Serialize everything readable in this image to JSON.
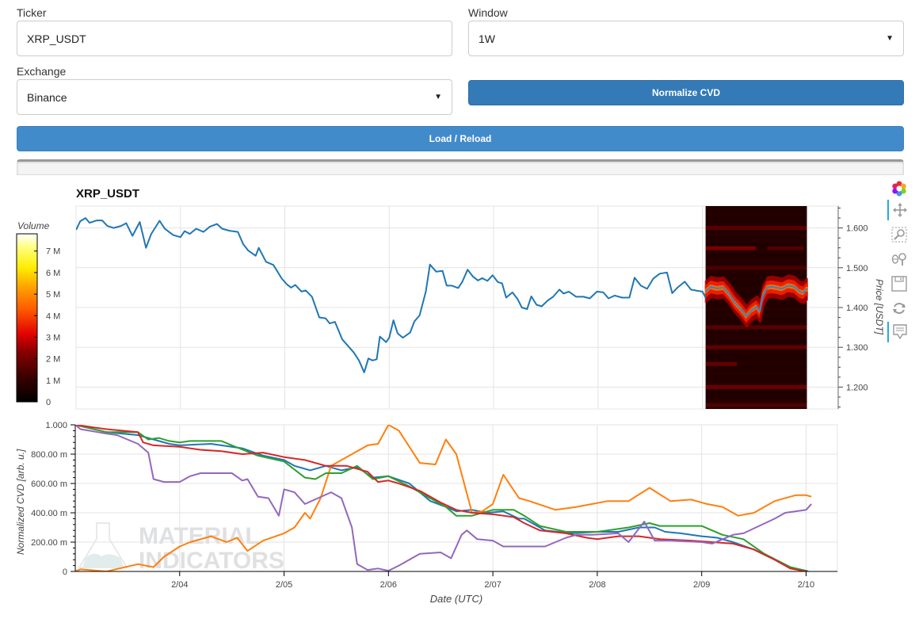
{
  "form": {
    "ticker_label": "Ticker",
    "ticker_value": "XRP_USDT",
    "window_label": "Window",
    "window_value": "1W",
    "exchange_label": "Exchange",
    "exchange_value": "Binance",
    "normalize_label": "Normalize CVD",
    "load_label": "Load / Reload"
  },
  "toolbar": {
    "tools": [
      {
        "name": "bokeh-logo-icon",
        "active": false
      },
      {
        "name": "pan-icon",
        "active": true
      },
      {
        "name": "box-zoom-icon",
        "active": false
      },
      {
        "name": "wheel-zoom-icon",
        "active": false
      },
      {
        "name": "save-icon",
        "active": false
      },
      {
        "name": "reset-icon",
        "active": false
      },
      {
        "name": "hover-icon",
        "active": true
      }
    ]
  },
  "watermark": {
    "line1": "MATERIAL",
    "line2": "INDICATORS"
  },
  "colors": {
    "price_line": "#1f77b4",
    "cvd_series": [
      "#1f77b4",
      "#ff7f0e",
      "#2ca02c",
      "#d62728",
      "#9467bd"
    ],
    "grid": "#e0e0e0"
  },
  "chart_data": [
    {
      "type": "line",
      "title": "XRP_USDT",
      "ylabel": "Price [USDT]",
      "ylim": [
        1.145,
        1.655
      ],
      "yticks": [
        1.2,
        1.3,
        1.4,
        1.5,
        1.6
      ],
      "ytick_labels": [
        "1.200",
        "1.300",
        "1.400",
        "1.500",
        "1.600"
      ],
      "xlim": [
        0,
        7.3
      ],
      "x_grid": [
        1,
        2,
        3,
        4,
        5,
        6,
        7
      ],
      "series": [
        {
          "name": "Price",
          "x": [
            0,
            0.04,
            0.09,
            0.13,
            0.2,
            0.25,
            0.3,
            0.36,
            0.43,
            0.48,
            0.54,
            0.61,
            0.67,
            0.72,
            0.8,
            0.85,
            0.93,
            1.0,
            1.04,
            1.09,
            1.15,
            1.22,
            1.28,
            1.35,
            1.4,
            1.47,
            1.55,
            1.6,
            1.65,
            1.72,
            1.75,
            1.82,
            1.89,
            1.97,
            2.02,
            2.06,
            2.1,
            2.16,
            2.2,
            2.26,
            2.33,
            2.39,
            2.43,
            2.48,
            2.55,
            2.6,
            2.66,
            2.71,
            2.76,
            2.8,
            2.84,
            2.88,
            2.91,
            2.97,
            3.0,
            3.04,
            3.08,
            3.13,
            3.2,
            3.24,
            3.29,
            3.35,
            3.39,
            3.45,
            3.51,
            3.55,
            3.6,
            3.66,
            3.7,
            3.75,
            3.8,
            3.85,
            3.89,
            3.94,
            3.99,
            4.04,
            4.08,
            4.12,
            4.18,
            4.23,
            4.27,
            4.32,
            4.36,
            4.41,
            4.46,
            4.52,
            4.57,
            4.63,
            4.67,
            4.72,
            4.79,
            4.86,
            4.92,
            4.99,
            5.05,
            5.1,
            5.16,
            5.23,
            5.3,
            5.35,
            5.41,
            5.47,
            5.53,
            5.59,
            5.66,
            5.71,
            5.76,
            5.83,
            5.89,
            5.95,
            6.0,
            6.03
          ],
          "y": [
            1.595,
            1.617,
            1.625,
            1.613,
            1.619,
            1.619,
            1.605,
            1.6,
            1.605,
            1.612,
            1.58,
            1.615,
            1.55,
            1.585,
            1.618,
            1.598,
            1.582,
            1.577,
            1.592,
            1.585,
            1.598,
            1.59,
            1.603,
            1.61,
            1.598,
            1.593,
            1.59,
            1.56,
            1.543,
            1.53,
            1.55,
            1.515,
            1.507,
            1.473,
            1.458,
            1.45,
            1.457,
            1.44,
            1.443,
            1.427,
            1.375,
            1.373,
            1.36,
            1.364,
            1.32,
            1.305,
            1.287,
            1.267,
            1.237,
            1.272,
            1.267,
            1.27,
            1.327,
            1.313,
            1.324,
            1.368,
            1.335,
            1.324,
            1.337,
            1.365,
            1.38,
            1.44,
            1.508,
            1.49,
            1.492,
            1.455,
            1.455,
            1.449,
            1.465,
            1.495,
            1.478,
            1.468,
            1.474,
            1.467,
            1.481,
            1.464,
            1.461,
            1.425,
            1.438,
            1.421,
            1.4,
            1.396,
            1.428,
            1.407,
            1.403,
            1.418,
            1.427,
            1.445,
            1.435,
            1.44,
            1.427,
            1.427,
            1.423,
            1.44,
            1.438,
            1.423,
            1.43,
            1.425,
            1.425,
            1.475,
            1.455,
            1.447,
            1.473,
            1.485,
            1.488,
            1.436,
            1.45,
            1.465,
            1.445,
            1.442,
            1.44,
            1.425
          ]
        }
      ],
      "overlay": {
        "type": "heatmap",
        "xlim": [
          6.03,
          7.0
        ],
        "colorbar_label": "Volume",
        "colorbar_ticks": [
          "0",
          "1 M",
          "2 M",
          "3 M",
          "4 M",
          "5 M",
          "6 M",
          "7 M"
        ],
        "colorbar_range": [
          0,
          7.8
        ],
        "recent_price": {
          "x": [
            6.03,
            6.08,
            6.14,
            6.2,
            6.26,
            6.31,
            6.37,
            6.42,
            6.47,
            6.52,
            6.55,
            6.58,
            6.62,
            6.66,
            6.71,
            6.76,
            6.82,
            6.88,
            6.93,
            6.97,
            7.0
          ],
          "y": [
            1.44,
            1.452,
            1.448,
            1.45,
            1.432,
            1.412,
            1.395,
            1.378,
            1.393,
            1.402,
            1.39,
            1.43,
            1.45,
            1.452,
            1.45,
            1.447,
            1.455,
            1.452,
            1.44,
            1.437,
            1.448
          ]
        },
        "volume_bands": [
          {
            "price": 1.6,
            "intensity": 0.35,
            "x_from": 6.03,
            "x_to": 7.0
          },
          {
            "price": 1.549,
            "intensity": 0.55,
            "x_from": 6.03,
            "x_to": 6.51
          },
          {
            "price": 1.549,
            "intensity": 0.3,
            "x_from": 6.62,
            "x_to": 6.97
          },
          {
            "price": 1.5,
            "intensity": 0.25,
            "x_from": 6.03,
            "x_to": 7.0
          },
          {
            "price": 1.35,
            "intensity": 0.35,
            "x_from": 6.03,
            "x_to": 7.0
          },
          {
            "price": 1.3,
            "intensity": 0.4,
            "x_from": 6.03,
            "x_to": 7.0
          },
          {
            "price": 1.258,
            "intensity": 0.4,
            "x_from": 6.03,
            "x_to": 6.33
          },
          {
            "price": 1.2,
            "intensity": 0.45,
            "x_from": 6.03,
            "x_to": 7.0
          },
          {
            "price": 1.155,
            "intensity": 0.3,
            "x_from": 6.03,
            "x_to": 7.0
          }
        ]
      }
    },
    {
      "type": "line",
      "xlabel": "Date (UTC)",
      "ylabel": "Normalized CVD [arb. u.]",
      "ylim": [
        0,
        1.0
      ],
      "yticks": [
        0,
        0.2,
        0.4,
        0.6,
        0.8,
        1.0
      ],
      "ytick_labels": [
        "0",
        "200.00 m",
        "400.00 m",
        "600.00 m",
        "800.00 m",
        "1.000"
      ],
      "xlim": [
        0,
        7.3
      ],
      "xticks": [
        1,
        2,
        3,
        4,
        5,
        6,
        7
      ],
      "xtick_labels": [
        "2/04",
        "2/05",
        "2/06",
        "2/07",
        "2/08",
        "2/09",
        "2/10"
      ],
      "series": [
        {
          "name": "blue",
          "x": [
            0,
            0.3,
            0.6,
            0.9,
            1.0,
            1.3,
            1.6,
            1.8,
            2.0,
            2.1,
            2.25,
            2.4,
            2.55,
            2.7,
            2.85,
            3.0,
            3.2,
            3.4,
            3.55,
            3.65,
            3.8,
            3.95,
            4.1,
            4.25,
            4.3,
            4.5,
            4.75,
            5.0,
            5.2,
            5.4,
            5.55,
            5.65,
            5.8,
            6.0,
            6.15,
            6.3,
            6.5,
            6.7,
            6.85,
            7.0,
            7.02
          ],
          "y": [
            1.0,
            0.95,
            0.93,
            0.87,
            0.86,
            0.87,
            0.84,
            0.79,
            0.76,
            0.72,
            0.69,
            0.72,
            0.69,
            0.71,
            0.64,
            0.65,
            0.6,
            0.48,
            0.44,
            0.41,
            0.42,
            0.4,
            0.41,
            0.36,
            0.36,
            0.28,
            0.26,
            0.27,
            0.27,
            0.3,
            0.3,
            0.27,
            0.26,
            0.24,
            0.23,
            0.2,
            0.15,
            0.08,
            0.02,
            0.005,
            0.0
          ]
        },
        {
          "name": "orange",
          "x": [
            0,
            0.05,
            0.3,
            0.6,
            0.75,
            0.85,
            1.0,
            1.1,
            1.3,
            1.45,
            1.55,
            1.65,
            1.8,
            2.0,
            2.1,
            2.2,
            2.25,
            2.35,
            2.45,
            2.6,
            2.8,
            2.9,
            3.0,
            3.1,
            3.3,
            3.45,
            3.55,
            3.65,
            3.8,
            3.9,
            4.0,
            4.1,
            4.25,
            4.35,
            4.6,
            4.8,
            5.1,
            5.3,
            5.5,
            5.7,
            5.9,
            6.05,
            6.2,
            6.35,
            6.5,
            6.7,
            6.9,
            7.0,
            7.05
          ],
          "y": [
            0.0,
            0.015,
            0.0,
            0.05,
            0.03,
            0.1,
            0.17,
            0.2,
            0.24,
            0.2,
            0.23,
            0.14,
            0.21,
            0.26,
            0.3,
            0.4,
            0.36,
            0.5,
            0.72,
            0.78,
            0.86,
            0.87,
            1.0,
            0.96,
            0.74,
            0.73,
            0.9,
            0.8,
            0.4,
            0.41,
            0.46,
            0.66,
            0.5,
            0.48,
            0.42,
            0.44,
            0.48,
            0.48,
            0.57,
            0.48,
            0.49,
            0.46,
            0.44,
            0.38,
            0.4,
            0.48,
            0.52,
            0.52,
            0.51
          ]
        },
        {
          "name": "green",
          "x": [
            0,
            0.3,
            0.6,
            0.7,
            0.8,
            0.9,
            1.0,
            1.1,
            1.4,
            1.5,
            1.75,
            2.0,
            2.2,
            2.3,
            2.4,
            2.55,
            2.7,
            2.85,
            3.0,
            3.2,
            3.45,
            3.55,
            3.65,
            3.8,
            4.0,
            4.2,
            4.3,
            4.45,
            4.7,
            5.0,
            5.3,
            5.5,
            5.6,
            5.75,
            6.0,
            6.2,
            6.4,
            6.6,
            6.85,
            7.0
          ],
          "y": [
            1.0,
            0.95,
            0.95,
            0.9,
            0.91,
            0.89,
            0.88,
            0.89,
            0.89,
            0.86,
            0.79,
            0.75,
            0.64,
            0.63,
            0.67,
            0.67,
            0.72,
            0.63,
            0.65,
            0.58,
            0.48,
            0.44,
            0.38,
            0.38,
            0.42,
            0.42,
            0.38,
            0.31,
            0.27,
            0.27,
            0.3,
            0.33,
            0.31,
            0.31,
            0.31,
            0.25,
            0.22,
            0.12,
            0.03,
            0.005
          ]
        },
        {
          "name": "red",
          "x": [
            0,
            0.3,
            0.6,
            0.65,
            0.75,
            1.0,
            1.2,
            1.4,
            1.6,
            1.8,
            2.0,
            2.2,
            2.4,
            2.6,
            2.8,
            2.9,
            3.0,
            3.1,
            3.3,
            3.5,
            3.65,
            3.8,
            4.0,
            4.2,
            4.3,
            4.45,
            4.7,
            4.9,
            5.0,
            5.2,
            5.4,
            5.6,
            5.9,
            6.1,
            6.3,
            6.5,
            6.7,
            6.85,
            7.0
          ],
          "y": [
            1.0,
            0.97,
            0.95,
            0.88,
            0.86,
            0.85,
            0.83,
            0.82,
            0.8,
            0.81,
            0.78,
            0.76,
            0.72,
            0.72,
            0.68,
            0.61,
            0.62,
            0.6,
            0.55,
            0.47,
            0.42,
            0.4,
            0.39,
            0.37,
            0.33,
            0.28,
            0.26,
            0.23,
            0.22,
            0.24,
            0.24,
            0.22,
            0.21,
            0.2,
            0.19,
            0.15,
            0.08,
            0.02,
            0.0
          ]
        },
        {
          "name": "purple",
          "x": [
            0,
            0.05,
            0.3,
            0.4,
            0.6,
            0.7,
            0.75,
            0.85,
            1.0,
            1.1,
            1.2,
            1.5,
            1.6,
            1.65,
            1.75,
            1.85,
            1.95,
            2.0,
            2.1,
            2.2,
            2.45,
            2.55,
            2.65,
            2.7,
            2.8,
            2.9,
            3.0,
            3.1,
            3.3,
            3.5,
            3.6,
            3.7,
            3.75,
            3.85,
            4.0,
            4.1,
            4.3,
            4.5,
            4.7,
            4.8,
            4.95,
            5.2,
            5.3,
            5.45,
            5.55,
            5.7,
            6.0,
            6.1,
            6.3,
            6.4,
            6.7,
            6.8,
            7.0,
            7.05
          ],
          "y": [
            1.0,
            0.97,
            0.94,
            0.93,
            0.87,
            0.81,
            0.63,
            0.61,
            0.61,
            0.65,
            0.67,
            0.67,
            0.62,
            0.63,
            0.51,
            0.5,
            0.38,
            0.56,
            0.54,
            0.46,
            0.54,
            0.5,
            0.3,
            0.05,
            0.01,
            0.02,
            0.005,
            0.04,
            0.12,
            0.13,
            0.09,
            0.25,
            0.28,
            0.22,
            0.21,
            0.17,
            0.17,
            0.17,
            0.23,
            0.25,
            0.25,
            0.26,
            0.2,
            0.34,
            0.21,
            0.21,
            0.2,
            0.19,
            0.25,
            0.26,
            0.36,
            0.4,
            0.42,
            0.46
          ]
        }
      ]
    }
  ]
}
